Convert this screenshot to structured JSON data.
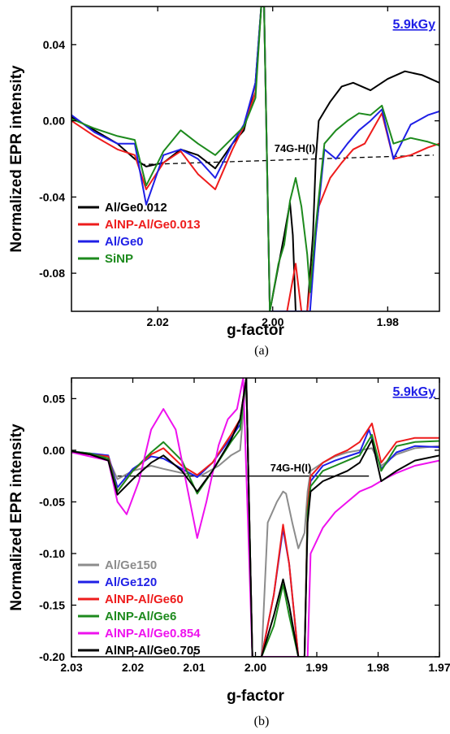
{
  "chart_data": [
    {
      "panel": "a",
      "type": "line",
      "caption": "(a)",
      "xlabel": "g-factor",
      "ylabel": "Normalized EPR intensity",
      "dose_label": "5.9kGy",
      "xlim": [
        2.035,
        1.971
      ],
      "ylim": [
        -0.1,
        0.06
      ],
      "xticks": [
        2.02,
        2.0,
        1.98
      ],
      "xtick_labels": [
        "2.02",
        "2.00",
        "1.98"
      ],
      "yticks": [
        0.04,
        0.0,
        -0.04,
        -0.08
      ],
      "ytick_labels": [
        "0.04",
        "0.00",
        "-0.04",
        "-0.08"
      ],
      "annotation": "74G-H(I)",
      "baseline": {
        "x": [
          2.023,
          1.972
        ],
        "y": [
          -0.023,
          -0.018
        ]
      },
      "legend_position": "bottom-left",
      "series": [
        {
          "name": "Al/Ge0.012",
          "color": "#000000",
          "x": [
            2.035,
            2.031,
            2.027,
            2.024,
            2.022,
            2.019,
            2.016,
            2.013,
            2.01,
            2.007,
            2.005,
            2.003,
            2.002,
            2.0015,
            2.0005,
            1.998,
            1.997,
            1.9965,
            1.996,
            1.995,
            1.994,
            1.993,
            1.9925,
            1.992,
            1.991,
            1.99,
            1.988,
            1.986,
            1.983,
            1.98,
            1.977,
            1.974,
            1.971
          ],
          "y": [
            0.002,
            -0.005,
            -0.012,
            -0.02,
            -0.024,
            -0.022,
            -0.015,
            -0.018,
            -0.025,
            -0.012,
            -0.005,
            0.02,
            0.06,
            0.06,
            -0.1,
            -0.06,
            -0.043,
            -0.06,
            -0.1,
            -0.1,
            -0.1,
            -0.06,
            -0.02,
            0.0,
            0.005,
            0.01,
            0.018,
            0.02,
            0.016,
            0.022,
            0.026,
            0.024,
            0.02
          ]
        },
        {
          "name": "AlNP-Al/Ge0.013",
          "color": "#ee1c1c",
          "x": [
            2.035,
            2.031,
            2.027,
            2.024,
            2.022,
            2.019,
            2.016,
            2.013,
            2.01,
            2.007,
            2.005,
            2.003,
            2.002,
            2.0015,
            2.0005,
            1.9975,
            1.996,
            1.995,
            1.994,
            1.992,
            1.99,
            1.988,
            1.986,
            1.984,
            1.981,
            1.979,
            1.976,
            1.973,
            1.971
          ],
          "y": [
            0.0,
            -0.008,
            -0.015,
            -0.018,
            -0.036,
            -0.022,
            -0.016,
            -0.028,
            -0.036,
            -0.015,
            -0.003,
            0.015,
            0.06,
            0.06,
            -0.1,
            -0.1,
            -0.075,
            -0.1,
            -0.1,
            -0.045,
            -0.03,
            -0.022,
            -0.015,
            -0.012,
            0.004,
            -0.02,
            -0.018,
            -0.014,
            -0.012
          ]
        },
        {
          "name": "Al/Ge0",
          "color": "#1f1fe6",
          "x": [
            2.035,
            2.031,
            2.027,
            2.024,
            2.022,
            2.019,
            2.016,
            2.013,
            2.01,
            2.007,
            2.005,
            2.003,
            2.002,
            2.0015,
            2.0005,
            1.999,
            1.997,
            1.995,
            1.9935,
            1.9925,
            1.991,
            1.989,
            1.987,
            1.985,
            1.983,
            1.981,
            1.979,
            1.976,
            1.973,
            1.971
          ],
          "y": [
            0.003,
            -0.006,
            -0.012,
            -0.012,
            -0.044,
            -0.018,
            -0.015,
            -0.02,
            -0.03,
            -0.012,
            -0.002,
            0.02,
            0.06,
            0.06,
            -0.1,
            -0.1,
            -0.1,
            -0.1,
            -0.1,
            -0.06,
            -0.015,
            -0.02,
            -0.012,
            -0.005,
            -0.0,
            0.006,
            -0.02,
            -0.002,
            0.003,
            0.005
          ]
        },
        {
          "name": "SiNP",
          "color": "#1d8a1d",
          "x": [
            2.035,
            2.031,
            2.027,
            2.024,
            2.022,
            2.019,
            2.016,
            2.013,
            2.01,
            2.007,
            2.005,
            2.003,
            2.002,
            2.0015,
            2.0005,
            1.999,
            1.998,
            1.997,
            1.996,
            1.995,
            1.994,
            1.9935,
            1.9925,
            1.991,
            1.989,
            1.987,
            1.985,
            1.983,
            1.981,
            1.979,
            1.976,
            1.973,
            1.971
          ],
          "y": [
            0.001,
            -0.004,
            -0.008,
            -0.01,
            -0.034,
            -0.016,
            -0.005,
            -0.012,
            -0.018,
            -0.009,
            -0.003,
            0.012,
            0.06,
            0.06,
            -0.1,
            -0.075,
            -0.065,
            -0.042,
            -0.03,
            -0.045,
            -0.07,
            -0.09,
            -0.055,
            -0.012,
            -0.005,
            -0.0,
            0.004,
            0.003,
            0.008,
            -0.012,
            -0.009,
            -0.011,
            -0.013
          ]
        }
      ]
    },
    {
      "panel": "b",
      "type": "line",
      "caption": "(b)",
      "xlabel": "g-factor",
      "ylabel": "Normalized EPR intensity",
      "dose_label": "5.9kGy",
      "xlim": [
        2.03,
        1.97
      ],
      "ylim": [
        -0.2,
        0.07
      ],
      "xticks": [
        2.03,
        2.02,
        2.01,
        2.0,
        1.99,
        1.98,
        1.97
      ],
      "xtick_labels": [
        "2.03",
        "2.02",
        "2.01",
        "2.00",
        "1.99",
        "1.98",
        "1.97"
      ],
      "yticks": [
        0.05,
        0.0,
        -0.05,
        -0.1,
        -0.15,
        -0.2
      ],
      "ytick_labels": [
        "0.05",
        "0.00",
        "-0.05",
        "-0.10",
        "-0.15",
        "-0.20"
      ],
      "annotation": "74G-H(I)",
      "baseline": {
        "x": [
          2.0225,
          1.9815
        ],
        "y": [
          -0.025,
          -0.025
        ]
      },
      "legend_position": "bottom-left",
      "series": [
        {
          "name": "Al/Ge150",
          "color": "#8c8c8c",
          "x": [
            2.03,
            2.027,
            2.024,
            2.0225,
            2.02,
            2.017,
            2.015,
            2.012,
            2.009,
            2.006,
            2.004,
            2.0025,
            2.0015,
            2.0005,
            1.999,
            1.998,
            1.9965,
            1.9955,
            1.995,
            1.994,
            1.993,
            1.992,
            1.9915,
            1.991,
            1.989,
            1.987,
            1.985,
            1.983,
            1.981,
            1.9795,
            1.977,
            1.974,
            1.97
          ],
          "y": [
            -0.001,
            -0.004,
            -0.008,
            -0.028,
            -0.02,
            -0.015,
            -0.018,
            -0.022,
            -0.025,
            -0.015,
            -0.005,
            0.0,
            0.07,
            -0.2,
            -0.2,
            -0.07,
            -0.05,
            -0.04,
            -0.042,
            -0.07,
            -0.095,
            -0.08,
            -0.04,
            -0.02,
            -0.012,
            -0.006,
            -0.002,
            0.0,
            0.002,
            -0.015,
            -0.004,
            0.002,
            0.004
          ]
        },
        {
          "name": "Al/Ge120",
          "color": "#1f1fe6",
          "x": [
            2.03,
            2.027,
            2.024,
            2.0225,
            2.02,
            2.017,
            2.015,
            2.012,
            2.0095,
            2.007,
            2.004,
            2.0025,
            2.0015,
            2.0005,
            1.999,
            1.997,
            1.9955,
            1.9945,
            1.993,
            1.992,
            1.9915,
            1.991,
            1.989,
            1.987,
            1.985,
            1.983,
            1.9815,
            1.9795,
            1.977,
            1.974,
            1.97
          ],
          "y": [
            -0.001,
            -0.003,
            -0.005,
            -0.036,
            -0.018,
            -0.006,
            -0.008,
            -0.018,
            -0.026,
            -0.012,
            0.012,
            0.025,
            0.07,
            -0.2,
            -0.2,
            -0.14,
            -0.076,
            -0.11,
            -0.2,
            -0.2,
            -0.06,
            -0.03,
            -0.015,
            -0.01,
            -0.006,
            -0.002,
            0.02,
            -0.018,
            -0.002,
            0.004,
            0.003
          ]
        },
        {
          "name": "AlNP-Al/Ge60",
          "color": "#ee1c1c",
          "x": [
            2.03,
            2.027,
            2.024,
            2.0225,
            2.02,
            2.017,
            2.015,
            2.012,
            2.0095,
            2.007,
            2.004,
            2.0025,
            2.0015,
            2.0005,
            1.999,
            1.997,
            1.9955,
            1.9945,
            1.993,
            1.992,
            1.9915,
            1.991,
            1.989,
            1.987,
            1.985,
            1.983,
            1.981,
            1.9795,
            1.977,
            1.974,
            1.97
          ],
          "y": [
            -0.002,
            -0.004,
            -0.006,
            -0.04,
            -0.02,
            -0.004,
            0.002,
            -0.015,
            -0.024,
            -0.012,
            0.015,
            0.03,
            0.07,
            -0.2,
            -0.2,
            -0.14,
            -0.072,
            -0.11,
            -0.2,
            -0.2,
            -0.055,
            -0.025,
            -0.012,
            -0.005,
            0.0,
            0.008,
            0.026,
            -0.012,
            0.008,
            0.012,
            0.012
          ]
        },
        {
          "name": "AlNP-Al/Ge6",
          "color": "#1d8a1d",
          "x": [
            2.03,
            2.027,
            2.024,
            2.0225,
            2.02,
            2.017,
            2.015,
            2.012,
            2.0095,
            2.007,
            2.004,
            2.0025,
            2.0015,
            2.0005,
            1.999,
            1.997,
            1.9955,
            1.9945,
            1.993,
            1.992,
            1.9915,
            1.991,
            1.989,
            1.987,
            1.985,
            1.983,
            1.981,
            1.9795,
            1.977,
            1.974,
            1.97
          ],
          "y": [
            -0.001,
            -0.003,
            -0.008,
            -0.04,
            -0.02,
            -0.002,
            0.008,
            -0.01,
            -0.042,
            -0.02,
            0.008,
            0.02,
            0.07,
            -0.2,
            -0.2,
            -0.17,
            -0.13,
            -0.16,
            -0.2,
            -0.2,
            -0.06,
            -0.035,
            -0.02,
            -0.015,
            -0.01,
            -0.005,
            0.015,
            -0.02,
            0.004,
            0.008,
            0.009
          ]
        },
        {
          "name": "AlNP-Al/Ge0.854",
          "color": "#ee11ee",
          "x": [
            2.03,
            2.027,
            2.024,
            2.0225,
            2.021,
            2.019,
            2.017,
            2.015,
            2.013,
            2.011,
            2.0095,
            2.008,
            2.006,
            2.0045,
            2.003,
            2.002,
            2.0005,
            1.999,
            1.996,
            1.994,
            1.992,
            1.9915,
            1.991,
            1.989,
            1.987,
            1.985,
            1.983,
            1.981,
            1.979,
            1.977,
            1.974,
            1.97
          ],
          "y": [
            -0.002,
            -0.006,
            -0.01,
            -0.05,
            -0.062,
            -0.03,
            0.02,
            0.04,
            0.02,
            -0.04,
            -0.085,
            -0.05,
            0.005,
            0.03,
            0.04,
            0.07,
            -0.2,
            -0.2,
            -0.2,
            -0.2,
            -0.2,
            -0.2,
            -0.1,
            -0.075,
            -0.06,
            -0.05,
            -0.04,
            -0.035,
            -0.028,
            -0.022,
            -0.015,
            -0.01
          ]
        },
        {
          "name": "AlNP-Al/Ge0.705",
          "color": "#000000",
          "x": [
            2.03,
            2.027,
            2.024,
            2.0225,
            2.02,
            2.017,
            2.015,
            2.012,
            2.0095,
            2.007,
            2.004,
            2.0025,
            2.0015,
            2.0005,
            1.999,
            1.997,
            1.9955,
            1.9945,
            1.993,
            1.992,
            1.9915,
            1.991,
            1.989,
            1.987,
            1.985,
            1.983,
            1.981,
            1.9795,
            1.977,
            1.974,
            1.97
          ],
          "y": [
            -0.001,
            -0.004,
            -0.01,
            -0.043,
            -0.028,
            -0.012,
            -0.005,
            -0.02,
            -0.04,
            -0.02,
            0.01,
            0.03,
            0.07,
            -0.2,
            -0.2,
            -0.16,
            -0.125,
            -0.15,
            -0.2,
            -0.2,
            -0.07,
            -0.04,
            -0.03,
            -0.025,
            -0.02,
            -0.012,
            0.01,
            -0.03,
            -0.02,
            -0.01,
            -0.005
          ]
        }
      ]
    }
  ]
}
